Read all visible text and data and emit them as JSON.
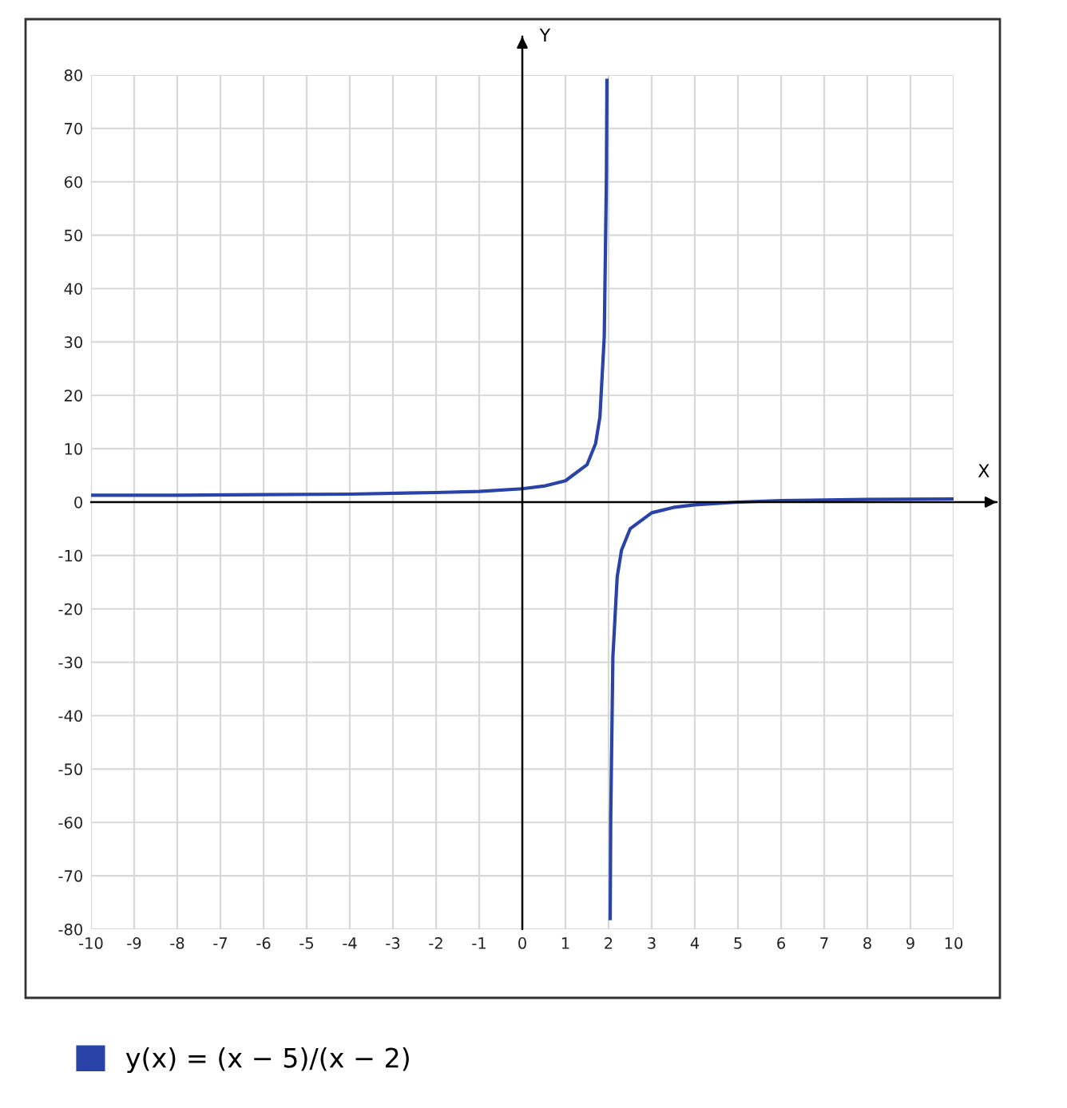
{
  "chart_data": {
    "type": "line",
    "xlabel": "X",
    "ylabel": "Y",
    "x": [
      -10,
      -8,
      -6,
      -4,
      -2,
      -1,
      0,
      0.5,
      1,
      1.5,
      1.7,
      1.8,
      1.9,
      1.95,
      1.962,
      2,
      2.038,
      2.05,
      2.1,
      2.2,
      2.3,
      2.5,
      3,
      3.5,
      4,
      5,
      6,
      8,
      10
    ],
    "series": [
      {
        "name": "y(x) = (x − 5)/(x − 2)",
        "color": "#2a43a8",
        "values": [
          1.3,
          1.3,
          1.4,
          1.5,
          1.8,
          2,
          2.5,
          3,
          4,
          7,
          11,
          16,
          31,
          61,
          79,
          null,
          -78,
          -59,
          -29,
          -14,
          -9,
          -5,
          -2,
          -1,
          -0.5,
          0,
          0.3,
          0.5,
          0.6
        ]
      }
    ],
    "xlim": [
      -10,
      10
    ],
    "ylim": [
      -80,
      80
    ],
    "xticks": [
      -10,
      -9,
      -8,
      -7,
      -6,
      -5,
      -4,
      -3,
      -2,
      -1,
      0,
      1,
      2,
      3,
      4,
      5,
      6,
      7,
      8,
      9,
      10
    ],
    "yticks": [
      -80,
      -70,
      -60,
      -50,
      -40,
      -30,
      -20,
      -10,
      0,
      10,
      20,
      30,
      40,
      50,
      60,
      70,
      80
    ],
    "grid": true,
    "legend": "bottom",
    "marker": "none",
    "line_style": "solid"
  }
}
